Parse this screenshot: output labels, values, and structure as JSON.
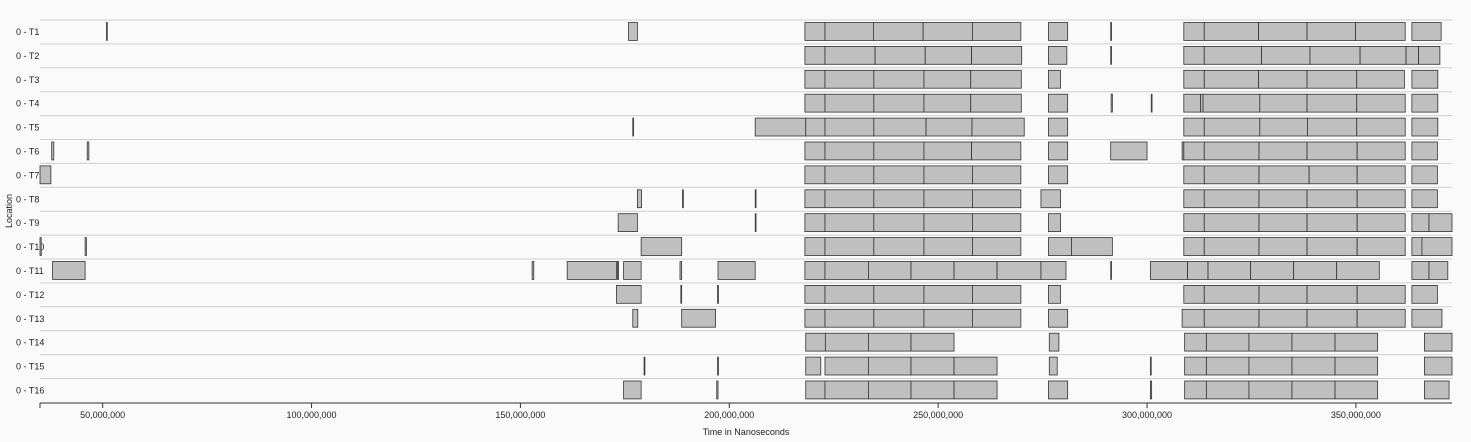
{
  "chart_data": {
    "type": "timeline",
    "xlabel": "Time in Nanoseconds",
    "ylabel": "Location",
    "xlim": [
      35000000,
      373000000
    ],
    "xticks": [
      {
        "value": 50000000,
        "label": "50,000,000"
      },
      {
        "value": 100000000,
        "label": "100,000,000"
      },
      {
        "value": 150000000,
        "label": "150,000,000"
      },
      {
        "value": 200000000,
        "label": "200,000,000"
      },
      {
        "value": 250000000,
        "label": "250,000,000"
      },
      {
        "value": 300000000,
        "label": "300,000,000"
      },
      {
        "value": 350000000,
        "label": "350,000,000"
      }
    ],
    "rows": [
      {
        "label": "0 - T1",
        "segments": [
          [
            50900000,
            51100000
          ],
          [
            175900000,
            178000000
          ],
          [
            218100000,
            222900000
          ],
          [
            222900000,
            234500000
          ],
          [
            234500000,
            246400000
          ],
          [
            246400000,
            258200000
          ],
          [
            258200000,
            269800000
          ],
          [
            276400000,
            281000000
          ],
          [
            291300000,
            291500000
          ],
          [
            308800000,
            313700000
          ],
          [
            313700000,
            326700000
          ],
          [
            326700000,
            338300000
          ],
          [
            338300000,
            349900000
          ],
          [
            349900000,
            361800000
          ],
          [
            363400000,
            370400000
          ]
        ]
      },
      {
        "label": "0 - T2",
        "segments": [
          [
            218100000,
            222900000
          ],
          [
            222900000,
            234900000
          ],
          [
            234900000,
            246900000
          ],
          [
            246900000,
            258000000
          ],
          [
            258000000,
            270000000
          ],
          [
            276400000,
            280800000
          ],
          [
            291300000,
            291500000
          ],
          [
            308800000,
            313700000
          ],
          [
            313700000,
            327400000
          ],
          [
            327400000,
            339000000
          ],
          [
            339000000,
            351000000
          ],
          [
            351000000,
            362000000
          ],
          [
            362000000,
            365000000
          ],
          [
            365000000,
            370100000
          ]
        ]
      },
      {
        "label": "0 - T3",
        "segments": [
          [
            218100000,
            222900000
          ],
          [
            222900000,
            234600000
          ],
          [
            234600000,
            246600000
          ],
          [
            246600000,
            257800000
          ],
          [
            257800000,
            269900000
          ],
          [
            276400000,
            279300000
          ],
          [
            308800000,
            313700000
          ],
          [
            313700000,
            326700000
          ],
          [
            326700000,
            338300000
          ],
          [
            338300000,
            350200000
          ],
          [
            350200000,
            361600000
          ],
          [
            363400000,
            369600000
          ]
        ]
      },
      {
        "label": "0 - T4",
        "segments": [
          [
            218100000,
            222900000
          ],
          [
            222900000,
            234600000
          ],
          [
            234600000,
            246600000
          ],
          [
            246600000,
            257800000
          ],
          [
            257800000,
            269900000
          ],
          [
            276400000,
            281000000
          ],
          [
            291400000,
            291700000
          ],
          [
            301000000,
            301200000
          ],
          [
            308800000,
            312800000
          ],
          [
            312800000,
            313400000
          ],
          [
            313400000,
            327000000
          ],
          [
            327000000,
            338300000
          ],
          [
            338300000,
            350200000
          ],
          [
            350200000,
            361800000
          ],
          [
            363400000,
            369600000
          ]
        ]
      },
      {
        "label": "0 - T5",
        "segments": [
          [
            176900000,
            177100000
          ],
          [
            206200000,
            218300000
          ],
          [
            218300000,
            222900000
          ],
          [
            222900000,
            234600000
          ],
          [
            234600000,
            247100000
          ],
          [
            247100000,
            258100000
          ],
          [
            258100000,
            270600000
          ],
          [
            276400000,
            281000000
          ],
          [
            308800000,
            313700000
          ],
          [
            313700000,
            327000000
          ],
          [
            327000000,
            338400000
          ],
          [
            338400000,
            350200000
          ],
          [
            350200000,
            361800000
          ],
          [
            363400000,
            369600000
          ]
        ]
      },
      {
        "label": "0 - T6",
        "segments": [
          [
            37800000,
            38300000
          ],
          [
            46300000,
            46700000
          ],
          [
            218100000,
            222900000
          ],
          [
            222900000,
            234600000
          ],
          [
            234600000,
            246600000
          ],
          [
            246600000,
            258000000
          ],
          [
            258000000,
            269800000
          ],
          [
            276400000,
            281000000
          ],
          [
            291300000,
            300000000
          ],
          [
            308400000,
            308800000
          ],
          [
            308800000,
            313700000
          ],
          [
            313700000,
            326800000
          ],
          [
            326800000,
            338300000
          ],
          [
            338300000,
            350300000
          ],
          [
            350300000,
            361800000
          ],
          [
            363400000,
            369500000
          ]
        ]
      },
      {
        "label": "0 - T7",
        "segments": [
          [
            35000000,
            37600000
          ],
          [
            218100000,
            222900000
          ],
          [
            222900000,
            234600000
          ],
          [
            234600000,
            246600000
          ],
          [
            246600000,
            258200000
          ],
          [
            258200000,
            269800000
          ],
          [
            276400000,
            281000000
          ],
          [
            308800000,
            313700000
          ],
          [
            313700000,
            326800000
          ],
          [
            326800000,
            338800000
          ],
          [
            338800000,
            350300000
          ],
          [
            350300000,
            361800000
          ],
          [
            363400000,
            369500000
          ]
        ]
      },
      {
        "label": "0 - T8",
        "segments": [
          [
            178000000,
            179000000
          ],
          [
            188800000,
            189000000
          ],
          [
            206200000,
            206400000
          ],
          [
            218100000,
            222900000
          ],
          [
            222900000,
            234600000
          ],
          [
            234600000,
            246600000
          ],
          [
            246600000,
            258200000
          ],
          [
            258200000,
            269800000
          ],
          [
            274600000,
            279300000
          ],
          [
            308800000,
            313700000
          ],
          [
            313700000,
            326800000
          ],
          [
            326800000,
            338300000
          ],
          [
            338300000,
            350300000
          ],
          [
            350300000,
            361800000
          ],
          [
            363400000,
            369500000
          ]
        ]
      },
      {
        "label": "0 - T9",
        "segments": [
          [
            173400000,
            178000000
          ],
          [
            206200000,
            206400000
          ],
          [
            218100000,
            222900000
          ],
          [
            222900000,
            234600000
          ],
          [
            234600000,
            246600000
          ],
          [
            246600000,
            258200000
          ],
          [
            258200000,
            269800000
          ],
          [
            276400000,
            279300000
          ],
          [
            308800000,
            313700000
          ],
          [
            313700000,
            326800000
          ],
          [
            326800000,
            338300000
          ],
          [
            338300000,
            350300000
          ],
          [
            350300000,
            361800000
          ],
          [
            363400000,
            367500000
          ],
          [
            367500000,
            373000000
          ]
        ]
      },
      {
        "label": "0 - T10",
        "segments": [
          [
            35000000,
            35300000
          ],
          [
            45800000,
            46100000
          ],
          [
            178900000,
            188600000
          ],
          [
            218100000,
            222900000
          ],
          [
            222900000,
            234600000
          ],
          [
            234600000,
            246600000
          ],
          [
            246600000,
            258200000
          ],
          [
            258200000,
            269800000
          ],
          [
            276400000,
            281900000
          ],
          [
            281900000,
            291700000
          ],
          [
            308800000,
            313700000
          ],
          [
            313700000,
            326800000
          ],
          [
            326800000,
            338300000
          ],
          [
            338300000,
            350300000
          ],
          [
            350300000,
            361800000
          ],
          [
            363400000,
            365800000
          ],
          [
            365800000,
            373000000
          ]
        ]
      },
      {
        "label": "0 - T11",
        "segments": [
          [
            38000000,
            45800000
          ],
          [
            152800000,
            153200000
          ],
          [
            161200000,
            173000000
          ],
          [
            173200000,
            173500000
          ],
          [
            174700000,
            178900000
          ],
          [
            188200000,
            188600000
          ],
          [
            197300000,
            206200000
          ],
          [
            218100000,
            222900000
          ],
          [
            222900000,
            233300000
          ],
          [
            233300000,
            243500000
          ],
          [
            243500000,
            253800000
          ],
          [
            253800000,
            264100000
          ],
          [
            264100000,
            274600000
          ],
          [
            274600000,
            280600000
          ],
          [
            291300000,
            291500000
          ],
          [
            300800000,
            309700000
          ],
          [
            309700000,
            314600000
          ],
          [
            314600000,
            324800000
          ],
          [
            324800000,
            335100000
          ],
          [
            335100000,
            345400000
          ],
          [
            345400000,
            355600000
          ],
          [
            363400000,
            367500000
          ],
          [
            367500000,
            372000000
          ]
        ]
      },
      {
        "label": "0 - T12",
        "segments": [
          [
            173000000,
            178900000
          ],
          [
            188400000,
            188600000
          ],
          [
            197200000,
            197400000
          ],
          [
            218100000,
            222900000
          ],
          [
            222900000,
            234600000
          ],
          [
            234600000,
            246600000
          ],
          [
            246600000,
            258200000
          ],
          [
            258200000,
            269800000
          ],
          [
            276400000,
            279300000
          ],
          [
            308800000,
            313700000
          ],
          [
            313700000,
            326800000
          ],
          [
            326800000,
            338300000
          ],
          [
            338300000,
            350300000
          ],
          [
            350300000,
            361800000
          ],
          [
            363400000,
            369500000
          ]
        ]
      },
      {
        "label": "0 - T13",
        "segments": [
          [
            176900000,
            178100000
          ],
          [
            188600000,
            196700000
          ],
          [
            218100000,
            222900000
          ],
          [
            222900000,
            234600000
          ],
          [
            234600000,
            246600000
          ],
          [
            246600000,
            258200000
          ],
          [
            258200000,
            269800000
          ],
          [
            276400000,
            281000000
          ],
          [
            308400000,
            313700000
          ],
          [
            313700000,
            326800000
          ],
          [
            326800000,
            338300000
          ],
          [
            338300000,
            350300000
          ],
          [
            350300000,
            361800000
          ],
          [
            363400000,
            370600000
          ]
        ]
      },
      {
        "label": "0 - T14",
        "segments": [
          [
            218300000,
            223000000
          ],
          [
            223000000,
            233300000
          ],
          [
            233300000,
            243500000
          ],
          [
            243500000,
            253800000
          ],
          [
            276600000,
            278900000
          ],
          [
            309000000,
            314200000
          ],
          [
            314200000,
            324400000
          ],
          [
            324400000,
            334700000
          ],
          [
            334700000,
            345000000
          ],
          [
            345000000,
            355200000
          ],
          [
            366400000,
            373000000
          ]
        ]
      },
      {
        "label": "0 - T15",
        "segments": [
          [
            179600000,
            179800000
          ],
          [
            197200000,
            197400000
          ],
          [
            218300000,
            221900000
          ],
          [
            222900000,
            233300000
          ],
          [
            233300000,
            243500000
          ],
          [
            243500000,
            253800000
          ],
          [
            253800000,
            264100000
          ],
          [
            276600000,
            278500000
          ],
          [
            300800000,
            301000000
          ],
          [
            309000000,
            314200000
          ],
          [
            314200000,
            324400000
          ],
          [
            324400000,
            334700000
          ],
          [
            334700000,
            345000000
          ],
          [
            345000000,
            355200000
          ],
          [
            366400000,
            373000000
          ]
        ]
      },
      {
        "label": "0 - T16",
        "segments": [
          [
            174700000,
            178900000
          ],
          [
            197000000,
            197300000
          ],
          [
            218300000,
            222900000
          ],
          [
            222900000,
            233300000
          ],
          [
            233300000,
            243500000
          ],
          [
            243500000,
            253800000
          ],
          [
            253800000,
            264100000
          ],
          [
            276400000,
            281000000
          ],
          [
            300800000,
            301100000
          ],
          [
            309000000,
            314200000
          ],
          [
            314200000,
            324400000
          ],
          [
            324400000,
            334700000
          ],
          [
            334700000,
            345000000
          ],
          [
            345000000,
            355200000
          ],
          [
            366400000,
            372300000
          ]
        ]
      }
    ]
  }
}
